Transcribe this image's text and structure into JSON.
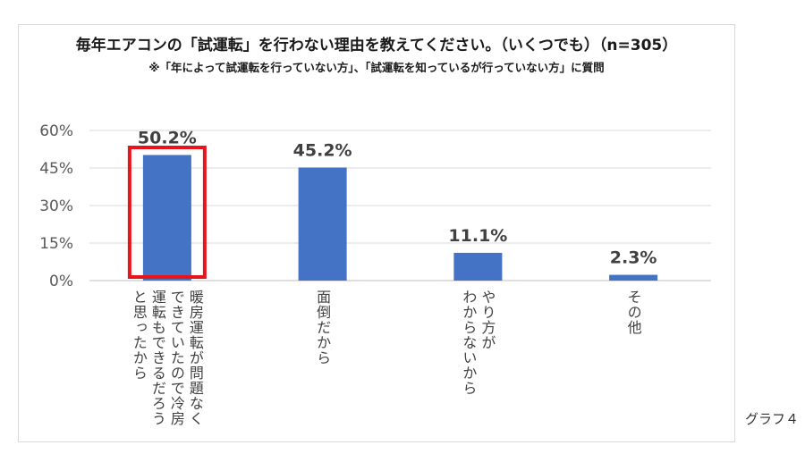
{
  "chart_data": {
    "type": "bar",
    "title": "毎年エアコンの「試運転」を行わない理由を教えてください。（いくつでも）（n=305）",
    "subtitle": "※「年によって試運転を行っていない方」、「試運転を知っているが行っていない方」に質問",
    "categories": [
      "暖房運転が問題なく\nできていたので冷房\n運転もできるだろう\nと思ったから",
      "面倒だから",
      "やり方が\nわからないから",
      "その他"
    ],
    "values": [
      50.2,
      45.2,
      11.1,
      2.3
    ],
    "value_labels": [
      "50.2%",
      "45.2%",
      "11.1%",
      "2.3%"
    ],
    "ylim": [
      0,
      60
    ],
    "yticks": [
      "0%",
      "15%",
      "30%",
      "45%",
      "60%"
    ],
    "grid": true,
    "highlight_index": 0,
    "bar_color": "#4472c4",
    "highlight_color": "#e8141b"
  },
  "caption": "グラフ４"
}
